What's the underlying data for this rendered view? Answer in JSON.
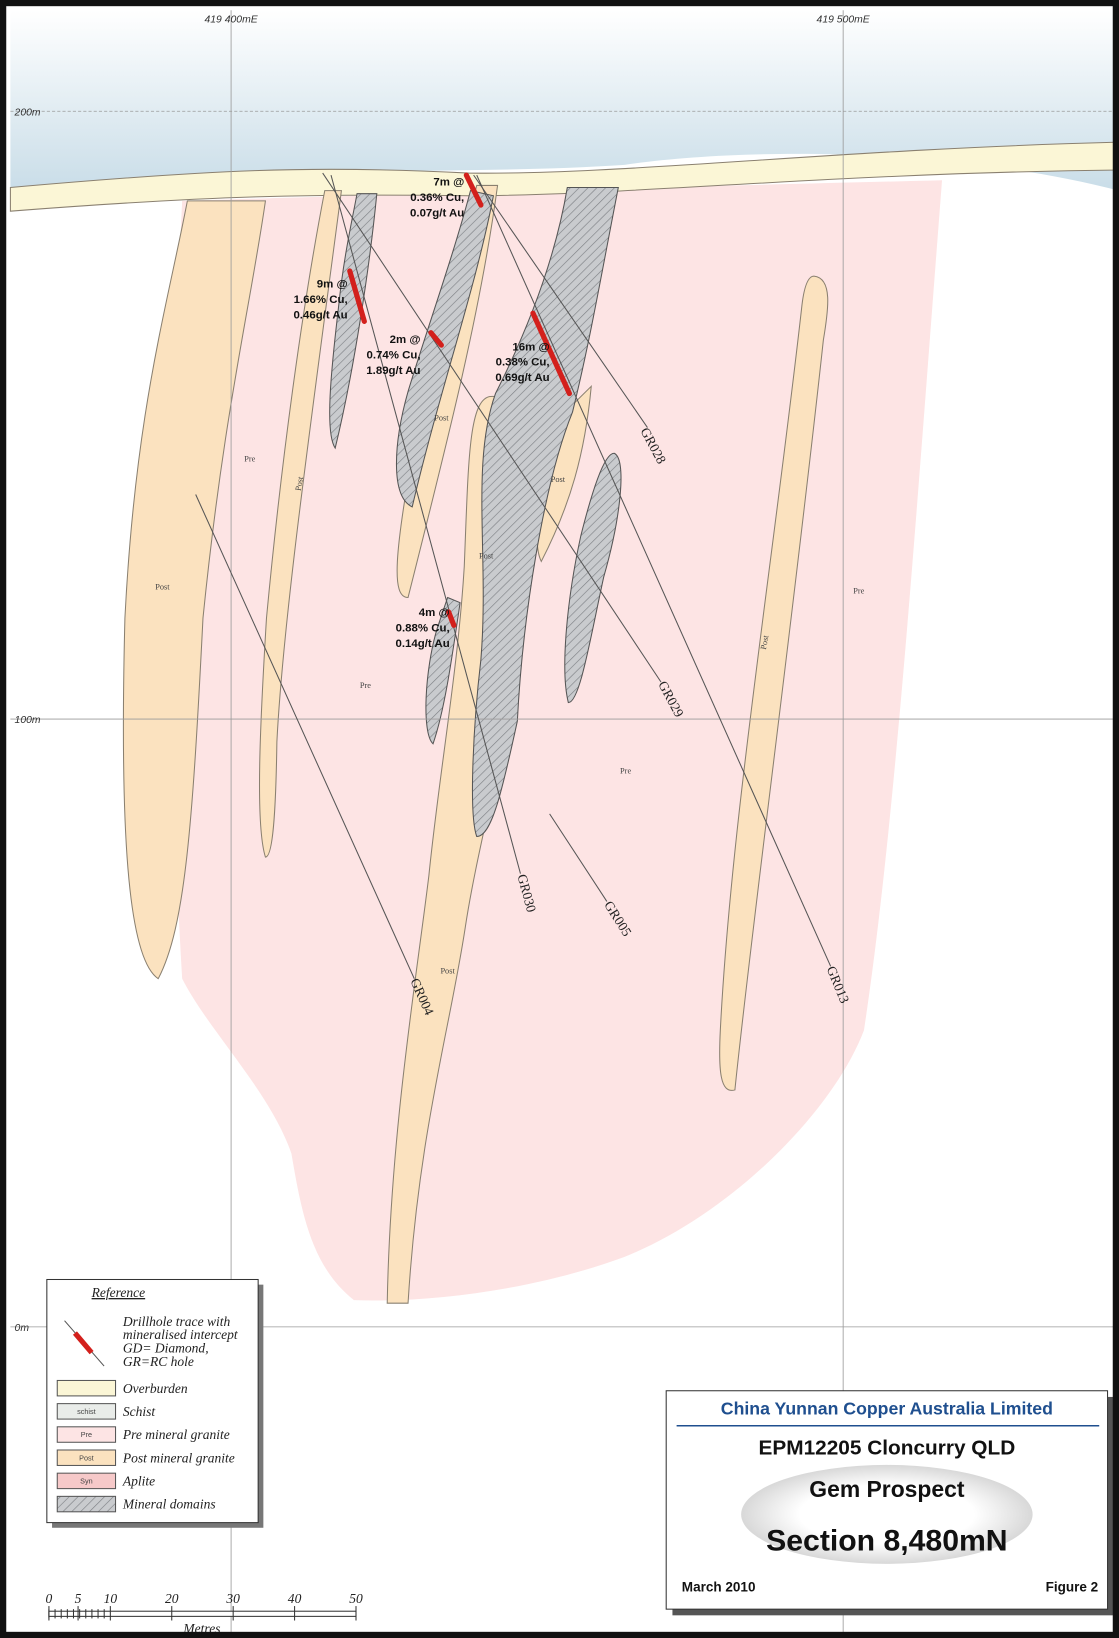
{
  "grid": {
    "eastings": [
      "419 400mE",
      "419 500mE"
    ],
    "elevations": [
      "200m",
      "100m",
      "0m"
    ]
  },
  "drillholes": [
    "GR028",
    "GR029",
    "GR030",
    "GR005",
    "GR004",
    "GR013"
  ],
  "intercepts": [
    {
      "lines": [
        "7m @",
        "0.36% Cu,",
        "0.07g/t Au"
      ]
    },
    {
      "lines": [
        "9m @",
        "1.66% Cu,",
        "0.46g/t Au"
      ]
    },
    {
      "lines": [
        "2m @",
        "0.74% Cu,",
        "1.89g/t Au"
      ]
    },
    {
      "lines": [
        "16m @",
        "0.38% Cu,",
        "0.69g/t Au"
      ]
    },
    {
      "lines": [
        "4m @",
        "0.88% Cu,",
        "0.14g/t Au"
      ]
    }
  ],
  "unit_labels": [
    "Pre",
    "Post",
    "Post",
    "Pre",
    "Post",
    "Post",
    "Post",
    "Pre",
    "Pre",
    "Post",
    "Post"
  ],
  "legend": {
    "title": "Reference",
    "drillhole": [
      "Drillhole trace with",
      "mineralised intercept",
      "GD= Diamond,",
      "GR=RC hole"
    ],
    "items": [
      {
        "swatch": null,
        "label": "Overburden"
      },
      {
        "swatch": "schist",
        "label": "Schist"
      },
      {
        "swatch": "Pre",
        "label": "Pre mineral granite"
      },
      {
        "swatch": "Post",
        "label": "Post mineral granite"
      },
      {
        "swatch": "Syn",
        "label": "Aplite"
      },
      {
        "swatch": null,
        "label": "Mineral domains"
      }
    ]
  },
  "title_block": {
    "company": "China Yunnan Copper Australia Limited",
    "project": "EPM12205 Cloncurry QLD",
    "prospect": "Gem Prospect",
    "section": "Section 8,480mN",
    "date": "March 2010",
    "figure": "Figure 2"
  },
  "scale_bar": {
    "ticks": [
      "0",
      "5",
      "10",
      "20",
      "30",
      "40",
      "50"
    ],
    "unit": "Metres"
  }
}
